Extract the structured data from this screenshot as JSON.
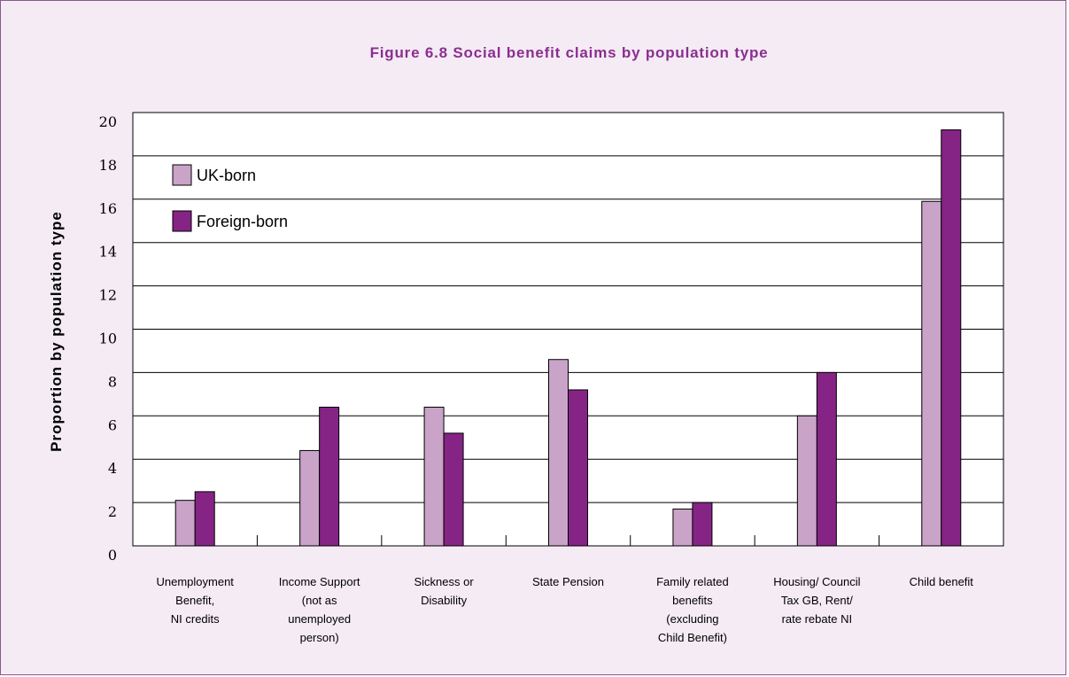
{
  "chart_data": {
    "type": "bar",
    "title": "Figure 6.8 Social benefit claims by population type",
    "ylabel": "Proportion by population type",
    "xlabel": "",
    "ylim": [
      0,
      20
    ],
    "yticks": [
      "0",
      "2",
      "4",
      "6",
      "8",
      "10",
      "12",
      "14",
      "16",
      "18",
      "20"
    ],
    "grid": true,
    "legend_position": "top-left",
    "categories": [
      [
        "Unemployment",
        "Benefit,",
        "NI credits"
      ],
      [
        "Income Support",
        "(not as",
        "unemployed",
        "person)"
      ],
      [
        "Sickness or",
        "Disability"
      ],
      [
        "State Pension"
      ],
      [
        "Family related",
        "benefits",
        "(excluding",
        "Child Benefit)"
      ],
      [
        "Housing/ Council",
        "Tax GB, Rent/",
        "rate rebate NI"
      ],
      [
        "Child benefit"
      ]
    ],
    "series": [
      {
        "name": "UK-born",
        "color": "#c9a3c8",
        "values": [
          2.1,
          4.4,
          6.4,
          8.6,
          1.7,
          6.0,
          15.9
        ]
      },
      {
        "name": "Foreign-born",
        "color": "#852485",
        "values": [
          2.5,
          6.4,
          5.2,
          7.2,
          2.0,
          8.0,
          19.2
        ]
      }
    ]
  }
}
